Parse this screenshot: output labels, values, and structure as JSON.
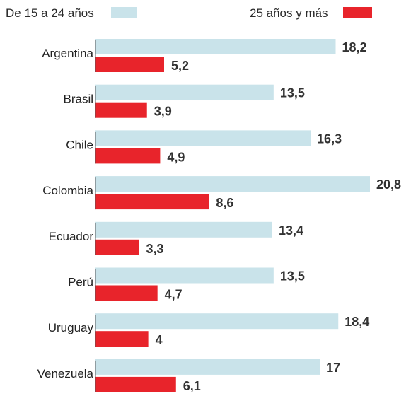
{
  "chart_data": {
    "type": "bar",
    "orientation": "horizontal",
    "categories": [
      "Argentina",
      "Brasil",
      "Chile",
      "Colombia",
      "Ecuador",
      "Perú",
      "Uruguay",
      "Venezuela"
    ],
    "series": [
      {
        "name": "De 15 a 24 años",
        "color": "#c9e3ea",
        "values": [
          18.2,
          13.5,
          16.3,
          20.8,
          13.4,
          13.5,
          18.4,
          17
        ],
        "labels": [
          "18,2",
          "13,5",
          "16,3",
          "20,8",
          "13,4",
          "13,5",
          "18,4",
          "17"
        ]
      },
      {
        "name": "25 años y más",
        "color": "#e8242b",
        "values": [
          5.2,
          3.9,
          4.9,
          8.6,
          3.3,
          4.7,
          4,
          6.1
        ],
        "labels": [
          "5,2",
          "3,9",
          "4,9",
          "8,6",
          "3,3",
          "4,7",
          "4",
          "6,1"
        ]
      }
    ],
    "xlim": [
      0,
      20.8
    ],
    "grid": false,
    "legend_placement": "top"
  }
}
